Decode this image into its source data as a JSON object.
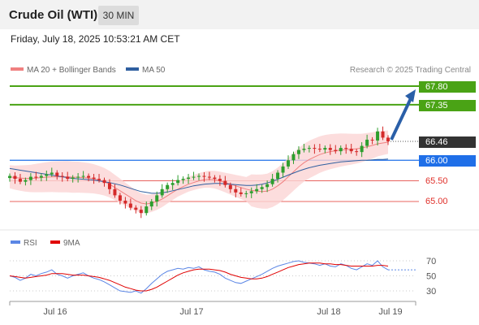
{
  "header": {
    "title": "Crude Oil (WTI)",
    "timeframe_button": "30 MIN"
  },
  "timestamp": "Friday, July 18, 2025 10:53:21 AM CET",
  "legend": {
    "ma20_label": "MA 20 + Bollinger Bands",
    "ma20_color": "#f08080",
    "ma50_label": "MA 50",
    "ma50_color": "#2f5fa0",
    "rsi_label": "RSI",
    "rsi_color": "#5b86e5",
    "rsi_ma_label": "9MA",
    "rsi_ma_color": "#e00000"
  },
  "copyright": "Research © 2025 Trading Central",
  "levels": {
    "target2": "67.80",
    "target1": "67.35",
    "current": "66.46",
    "pivot": "66.00",
    "support1": "65.50",
    "support2": "65.00"
  },
  "colors": {
    "resistance": "#4aa315",
    "current": "#333333",
    "pivot": "#1f6fe8",
    "support": "#e0302a",
    "bullish_candle": "#2e9e2e",
    "bearish_candle": "#d42a2a",
    "arrow": "#2a5fa8"
  },
  "chart_data": [
    {
      "type": "candlestick",
      "x_labels": [
        "Jul 16",
        "Jul 17",
        "Jul 18",
        "Jul 19"
      ],
      "price_levels": [
        67.8,
        67.35,
        66.46,
        66.0,
        65.5,
        65.0
      ],
      "close_path": [
        65.62,
        65.55,
        65.48,
        65.52,
        65.6,
        65.58,
        65.62,
        65.66,
        65.7,
        65.62,
        65.6,
        65.55,
        65.58,
        65.6,
        65.62,
        65.58,
        65.55,
        65.52,
        65.45,
        65.3,
        65.15,
        65.02,
        64.95,
        64.85,
        64.8,
        64.72,
        64.88,
        65.0,
        65.15,
        65.3,
        65.4,
        65.45,
        65.52,
        65.55,
        65.58,
        65.6,
        65.62,
        65.6,
        65.58,
        65.55,
        65.5,
        65.4,
        65.3,
        65.22,
        65.18,
        65.2,
        65.25,
        65.3,
        65.35,
        65.42,
        65.55,
        65.7,
        65.85,
        66.0,
        66.15,
        66.25,
        66.28,
        66.3,
        66.28,
        66.26,
        66.3,
        66.25,
        66.22,
        66.3,
        66.28,
        66.22,
        66.2,
        66.35,
        66.5,
        66.48,
        66.7,
        66.55,
        66.46
      ],
      "ma20": [
        65.6,
        65.58,
        65.57,
        65.56,
        65.56,
        65.57,
        65.58,
        65.59,
        65.6,
        65.6,
        65.6,
        65.6,
        65.59,
        65.59,
        65.58,
        65.57,
        65.55,
        65.52,
        65.48,
        65.42,
        65.34,
        65.26,
        65.18,
        65.1,
        65.02,
        64.96,
        64.94,
        64.96,
        65.0,
        65.06,
        65.14,
        65.22,
        65.3,
        65.36,
        65.42,
        65.46,
        65.5,
        65.53,
        65.54,
        65.53,
        65.5,
        65.46,
        65.42,
        65.38,
        65.34,
        65.3,
        65.27,
        65.25,
        65.24,
        65.25,
        65.3,
        65.38,
        65.48,
        65.6,
        65.72,
        65.84,
        65.94,
        66.02,
        66.08,
        66.14,
        66.18,
        66.21,
        66.23,
        66.25,
        66.26,
        66.27,
        66.28,
        66.3,
        66.33,
        66.36,
        66.4,
        66.42,
        66.44
      ],
      "ma50": [
        65.8,
        65.78,
        65.76,
        65.74,
        65.72,
        65.7,
        65.68,
        65.66,
        65.64,
        65.62,
        65.6,
        65.58,
        65.56,
        65.55,
        65.54,
        65.53,
        65.52,
        65.5,
        65.48,
        65.46,
        65.43,
        65.4,
        65.36,
        65.32,
        65.28,
        65.24,
        65.22,
        65.2,
        65.2,
        65.21,
        65.23,
        65.26,
        65.29,
        65.32,
        65.35,
        65.38,
        65.4,
        65.42,
        65.43,
        65.44,
        65.44,
        65.43,
        65.42,
        65.41,
        65.4,
        65.39,
        65.39,
        65.4,
        65.42,
        65.45,
        65.49,
        65.54,
        65.59,
        65.64,
        65.69,
        65.74,
        65.78,
        65.82,
        65.85,
        65.88,
        65.9,
        65.92,
        65.94,
        65.96,
        65.97,
        65.98,
        65.99,
        66.0,
        66.0,
        66.01,
        66.02,
        66.02,
        66.03
      ]
    },
    {
      "type": "line",
      "y_ticks": [
        70,
        50,
        30
      ],
      "x_labels": [
        "Jul 16",
        "Jul 17",
        "Jul 18",
        "Jul 19"
      ],
      "series": [
        {
          "name": "RSI",
          "values": [
            50,
            48,
            44,
            47,
            52,
            50,
            53,
            55,
            58,
            52,
            50,
            47,
            50,
            52,
            54,
            50,
            47,
            45,
            42,
            38,
            34,
            30,
            29,
            28,
            30,
            27,
            33,
            40,
            46,
            52,
            56,
            58,
            60,
            59,
            61,
            60,
            62,
            58,
            56,
            55,
            52,
            47,
            44,
            41,
            40,
            43,
            46,
            49,
            52,
            56,
            60,
            63,
            65,
            67,
            69,
            70,
            68,
            67,
            66,
            64,
            66,
            63,
            62,
            66,
            64,
            60,
            58,
            62,
            66,
            64,
            70,
            62,
            58
          ]
        },
        {
          "name": "9MA",
          "values": [
            50,
            49,
            48,
            47,
            48,
            49,
            50,
            51,
            53,
            53,
            53,
            52,
            51,
            51,
            51,
            50,
            49,
            48,
            46,
            44,
            41,
            38,
            35,
            33,
            31,
            30,
            30,
            32,
            35,
            39,
            43,
            47,
            51,
            54,
            56,
            58,
            59,
            59,
            59,
            58,
            57,
            55,
            52,
            50,
            48,
            47,
            46,
            46,
            47,
            49,
            52,
            55,
            58,
            61,
            63,
            65,
            66,
            67,
            67,
            67,
            66,
            66,
            65,
            65,
            64,
            63,
            63,
            63,
            63,
            63,
            64,
            64,
            63
          ]
        }
      ]
    }
  ]
}
